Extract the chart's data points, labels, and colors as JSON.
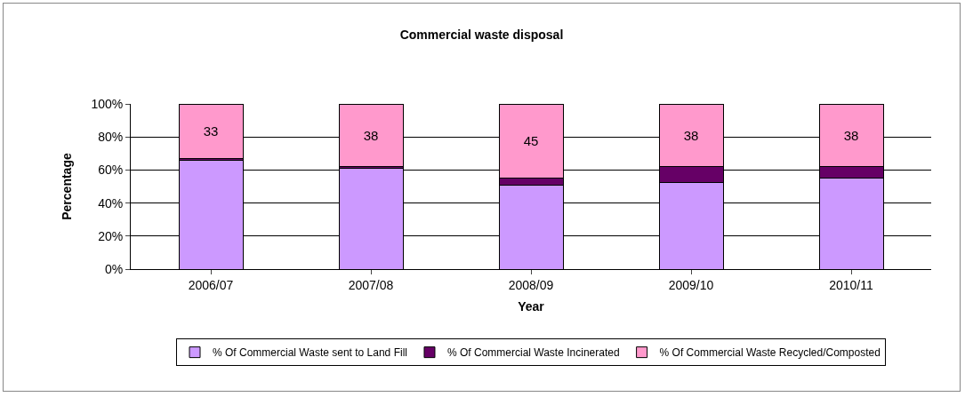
{
  "chart_data": {
    "type": "bar",
    "title": "Commercial waste disposal",
    "xlabel": "Year",
    "ylabel": "Percentage",
    "categories": [
      "2006/07",
      "2007/08",
      "2008/09",
      "2009/10",
      "2010/11"
    ],
    "stacked": true,
    "ylim": [
      0,
      100
    ],
    "yticks": [
      {
        "value": 0,
        "label": "0%"
      },
      {
        "value": 20,
        "label": "20%"
      },
      {
        "value": 40,
        "label": "40%"
      },
      {
        "value": 60,
        "label": "60%"
      },
      {
        "value": 80,
        "label": "80%"
      },
      {
        "value": 100,
        "label": "100%"
      }
    ],
    "grid": "y",
    "legend": "bottom",
    "series": [
      {
        "name": "% Of Commercial Waste sent to Land Fill",
        "color": "#cc99ff",
        "values": [
          66,
          61,
          51,
          52.5,
          55
        ]
      },
      {
        "name": "% Of Commercial Waste Incinerated",
        "color": "#660066",
        "values": [
          1,
          1,
          4,
          9.5,
          7
        ]
      },
      {
        "name": "% Of Commercial Waste Recycled/Composted",
        "color": "#ff99cc",
        "values": [
          33,
          38,
          45,
          38,
          38
        ],
        "value_labels": [
          "33",
          "38",
          "45",
          "38",
          "38"
        ]
      }
    ]
  }
}
